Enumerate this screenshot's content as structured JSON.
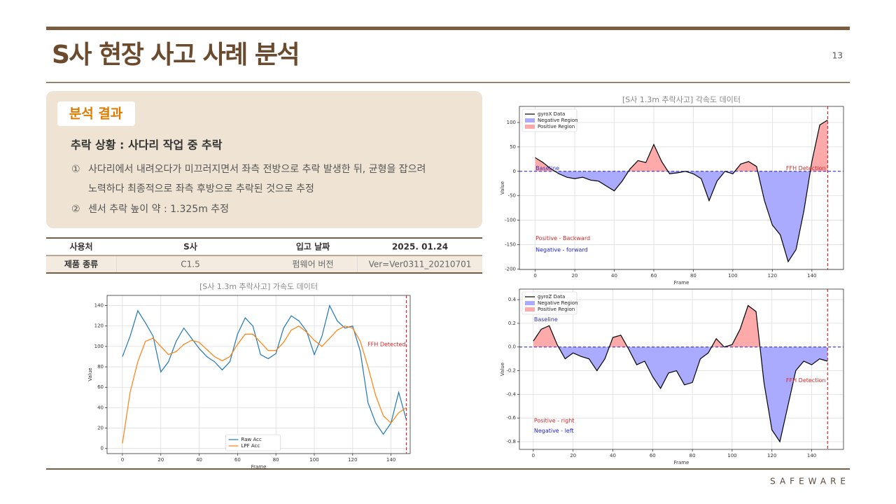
{
  "header": {
    "title": "S사 현장 사고 사례 분석",
    "page_number": "13"
  },
  "analysis": {
    "label": "분석 결과",
    "heading": "추락 상황 : 사다리 작업 중 추락",
    "items": [
      {
        "marker": "①",
        "lines": [
          "사다리에서 내려오다가 미끄러지면서 좌측 전방으로 추락 발생한 뒤, 균형을 잡으려",
          "노력하다 최종적으로 좌측 후방으로 추락된 것으로 추정"
        ]
      },
      {
        "marker": "②",
        "lines": [
          "센서 추락 높이 약 : 1.325m 추정"
        ]
      }
    ]
  },
  "table": {
    "rows": [
      [
        "사용처",
        "S사",
        "입고 날짜",
        "2025. 01.24"
      ],
      [
        "제품 종류",
        "C1.5",
        "펌웨어 버전",
        "Ver=Ver0311_20210701"
      ]
    ]
  },
  "chart_data": [
    {
      "type": "line",
      "title": "[S사 1.3m 추락사고] 가속도 데이터",
      "x_label": "Frame",
      "y_label": "Value",
      "x": [
        0,
        4,
        8,
        12,
        16,
        20,
        24,
        28,
        32,
        36,
        40,
        44,
        48,
        52,
        56,
        60,
        64,
        68,
        72,
        76,
        80,
        84,
        88,
        92,
        96,
        100,
        104,
        108,
        112,
        116,
        120,
        124,
        128,
        132,
        136,
        140,
        144,
        148
      ],
      "series": [
        {
          "name": "Raw Acc",
          "color": "#1f77b4",
          "values": [
            90,
            110,
            135,
            123,
            110,
            75,
            85,
            105,
            118,
            108,
            98,
            90,
            85,
            77,
            85,
            112,
            128,
            120,
            92,
            88,
            93,
            118,
            130,
            125,
            115,
            92,
            110,
            140,
            125,
            118,
            120,
            95,
            45,
            25,
            14,
            25,
            55,
            28
          ]
        },
        {
          "name": "LPF Acc",
          "color": "#ff7f0e",
          "values": [
            5,
            55,
            85,
            105,
            108,
            100,
            92,
            95,
            102,
            106,
            104,
            97,
            90,
            86,
            90,
            102,
            112,
            112,
            104,
            96,
            96,
            104,
            116,
            120,
            114,
            106,
            100,
            108,
            116,
            120,
            118,
            105,
            80,
            52,
            32,
            25,
            35,
            40
          ]
        }
      ],
      "xlim": [
        -8,
        150
      ],
      "ylim": [
        -5,
        150
      ],
      "xticks": [
        0,
        20,
        40,
        60,
        80,
        100,
        120,
        140
      ],
      "yticks": [
        0,
        20,
        40,
        60,
        80,
        100,
        120,
        140
      ],
      "grid": true,
      "legend": "lower center",
      "detection_frame": 148,
      "detection_color": "#d62728",
      "annotations": [
        {
          "text": "FFH Detected",
          "color": "#d62728"
        }
      ]
    },
    {
      "type": "line",
      "title": "[S사 1.3m 추락사고] 각속도 데이터",
      "x_label": "Frame",
      "y_label": "Value",
      "x": [
        0,
        4,
        8,
        12,
        16,
        20,
        24,
        28,
        32,
        36,
        40,
        44,
        48,
        52,
        56,
        60,
        64,
        68,
        72,
        76,
        80,
        84,
        88,
        92,
        96,
        100,
        104,
        108,
        112,
        116,
        120,
        124,
        128,
        132,
        136,
        140,
        144,
        148
      ],
      "series": [
        {
          "name": "gyroX Data",
          "color": "#000000",
          "values": [
            28,
            18,
            5,
            -5,
            -12,
            -15,
            -12,
            -18,
            -20,
            -30,
            -40,
            -20,
            5,
            22,
            18,
            55,
            20,
            -5,
            -3,
            0,
            -5,
            -15,
            -60,
            -20,
            0,
            -5,
            15,
            20,
            10,
            -60,
            -110,
            -130,
            -185,
            -160,
            -80,
            20,
            95,
            105
          ]
        }
      ],
      "regions": [
        {
          "name": "Negative Region",
          "color": "#aaaaff"
        },
        {
          "name": "Positive Region",
          "color": "#ffaaaa"
        }
      ],
      "baseline": 0,
      "baseline_color": "#2020c0",
      "xlim": [
        -8,
        156
      ],
      "ylim": [
        -201,
        133
      ],
      "xticks": [
        0,
        20,
        40,
        60,
        80,
        100,
        120,
        140
      ],
      "yticks": [
        -200,
        -150,
        -100,
        -50,
        0,
        50,
        100
      ],
      "grid": true,
      "legend": "upper left",
      "detection_frame": 148,
      "detection_color": "#d62728",
      "annotations": [
        {
          "text": "Baseline",
          "color": "#3030c0"
        },
        {
          "text": "FFH Detection",
          "color": "#d62728"
        },
        {
          "text": "Positive - Backward",
          "color": "#d62728"
        },
        {
          "text": "Negative - forward",
          "color": "#1f1fd0"
        }
      ]
    },
    {
      "type": "line",
      "x_label": "Frame",
      "y_label": "Value",
      "x": [
        0,
        4,
        8,
        12,
        16,
        20,
        24,
        28,
        32,
        36,
        40,
        44,
        48,
        52,
        56,
        60,
        64,
        68,
        72,
        76,
        80,
        84,
        88,
        92,
        96,
        100,
        104,
        108,
        112,
        116,
        120,
        124,
        128,
        132,
        136,
        140,
        144,
        148
      ],
      "series": [
        {
          "name": "gyroZ Data",
          "color": "#000000",
          "values": [
            0.05,
            0.15,
            0.18,
            0.02,
            -0.1,
            -0.05,
            -0.08,
            -0.1,
            -0.2,
            -0.1,
            0.08,
            0.1,
            -0.02,
            -0.15,
            -0.12,
            -0.25,
            -0.35,
            -0.22,
            -0.2,
            -0.32,
            -0.3,
            -0.1,
            -0.05,
            0.07,
            0,
            0.02,
            0.15,
            0.35,
            0.3,
            -0.3,
            -0.7,
            -0.8,
            -0.5,
            -0.2,
            -0.12,
            -0.15,
            -0.1,
            -0.12
          ]
        }
      ],
      "regions": [
        {
          "name": "Negative Region",
          "color": "#aaaaff"
        },
        {
          "name": "Positive Region",
          "color": "#ffaaaa"
        }
      ],
      "baseline": 0,
      "baseline_color": "#2020c0",
      "xlim": [
        -7,
        156
      ],
      "ylim": [
        -0.865,
        0.489
      ],
      "xticks": [
        0,
        20,
        40,
        60,
        80,
        100,
        120,
        140
      ],
      "yticks": [
        -0.8,
        -0.6,
        -0.4,
        -0.2,
        {
          "value": 0,
          "label": "0.0"
        },
        0.2,
        0.4
      ],
      "grid": true,
      "legend": "upper left",
      "detection_frame": 148,
      "detection_color": "#d62728",
      "annotations": [
        {
          "text": "Baseline",
          "color": "#3030c0"
        },
        {
          "text": "FFH Detection",
          "color": "#d62728"
        },
        {
          "text": "Positive - right",
          "color": "#d62728"
        },
        {
          "text": "Negative - left",
          "color": "#1f1fd0"
        }
      ]
    }
  ],
  "footer": {
    "logo": "SAFEWARE"
  }
}
